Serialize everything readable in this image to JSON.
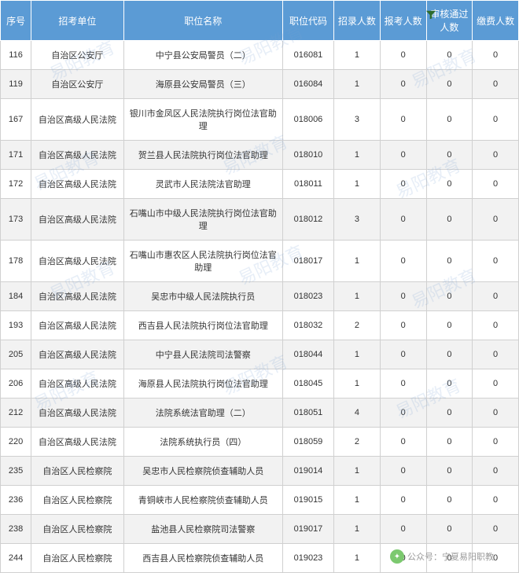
{
  "headers": [
    "序号",
    "招考单位",
    "职位名称",
    "职位代码",
    "招录人数",
    "报考人数",
    "审核通过人数",
    "缴费人数"
  ],
  "rows": [
    [
      "116",
      "自治区公安厅",
      "中宁县公安局警员（二）",
      "016081",
      "1",
      "0",
      "0",
      "0"
    ],
    [
      "119",
      "自治区公安厅",
      "海原县公安局警员（三）",
      "016084",
      "1",
      "0",
      "0",
      "0"
    ],
    [
      "167",
      "自治区高级人民法院",
      "银川市金凤区人民法院执行岗位法官助理",
      "018006",
      "3",
      "0",
      "0",
      "0"
    ],
    [
      "171",
      "自治区高级人民法院",
      "贺兰县人民法院执行岗位法官助理",
      "018010",
      "1",
      "0",
      "0",
      "0"
    ],
    [
      "172",
      "自治区高级人民法院",
      "灵武市人民法院法官助理",
      "018011",
      "1",
      "0",
      "0",
      "0"
    ],
    [
      "173",
      "自治区高级人民法院",
      "石嘴山市中级人民法院执行岗位法官助理",
      "018012",
      "3",
      "0",
      "0",
      "0"
    ],
    [
      "178",
      "自治区高级人民法院",
      "石嘴山市惠农区人民法院执行岗位法官助理",
      "018017",
      "1",
      "0",
      "0",
      "0"
    ],
    [
      "184",
      "自治区高级人民法院",
      "吴忠市中级人民法院执行员",
      "018023",
      "1",
      "0",
      "0",
      "0"
    ],
    [
      "193",
      "自治区高级人民法院",
      "西吉县人民法院执行岗位法官助理",
      "018032",
      "2",
      "0",
      "0",
      "0"
    ],
    [
      "205",
      "自治区高级人民法院",
      "中宁县人民法院司法警察",
      "018044",
      "1",
      "0",
      "0",
      "0"
    ],
    [
      "206",
      "自治区高级人民法院",
      "海原县人民法院执行岗位法官助理",
      "018045",
      "1",
      "0",
      "0",
      "0"
    ],
    [
      "212",
      "自治区高级人民法院",
      "法院系统法官助理（二）",
      "018051",
      "4",
      "0",
      "0",
      "0"
    ],
    [
      "220",
      "自治区高级人民法院",
      "法院系统执行员（四）",
      "018059",
      "2",
      "0",
      "0",
      "0"
    ],
    [
      "235",
      "自治区人民检察院",
      "吴忠市人民检察院侦查辅助人员",
      "019014",
      "1",
      "0",
      "0",
      "0"
    ],
    [
      "236",
      "自治区人民检察院",
      "青铜峡市人民检察院侦查辅助人员",
      "019015",
      "1",
      "0",
      "0",
      "0"
    ],
    [
      "238",
      "自治区人民检察院",
      "盐池县人民检察院司法警察",
      "019017",
      "1",
      "0",
      "0",
      "0"
    ],
    [
      "244",
      "自治区人民检察院",
      "西吉县人民检察院侦查辅助人员",
      "019023",
      "1",
      "0",
      "0",
      "0"
    ]
  ],
  "watermark_text": "易阳教育",
  "footer": {
    "prefix": "公众号：",
    "name": "宁夏易阳职教"
  },
  "colors": {
    "header_bg": "#5b9bd5",
    "header_fg": "#ffffff",
    "row_odd": "#ffffff",
    "row_even": "#f2f2f2",
    "border": "#d0d0d0"
  }
}
